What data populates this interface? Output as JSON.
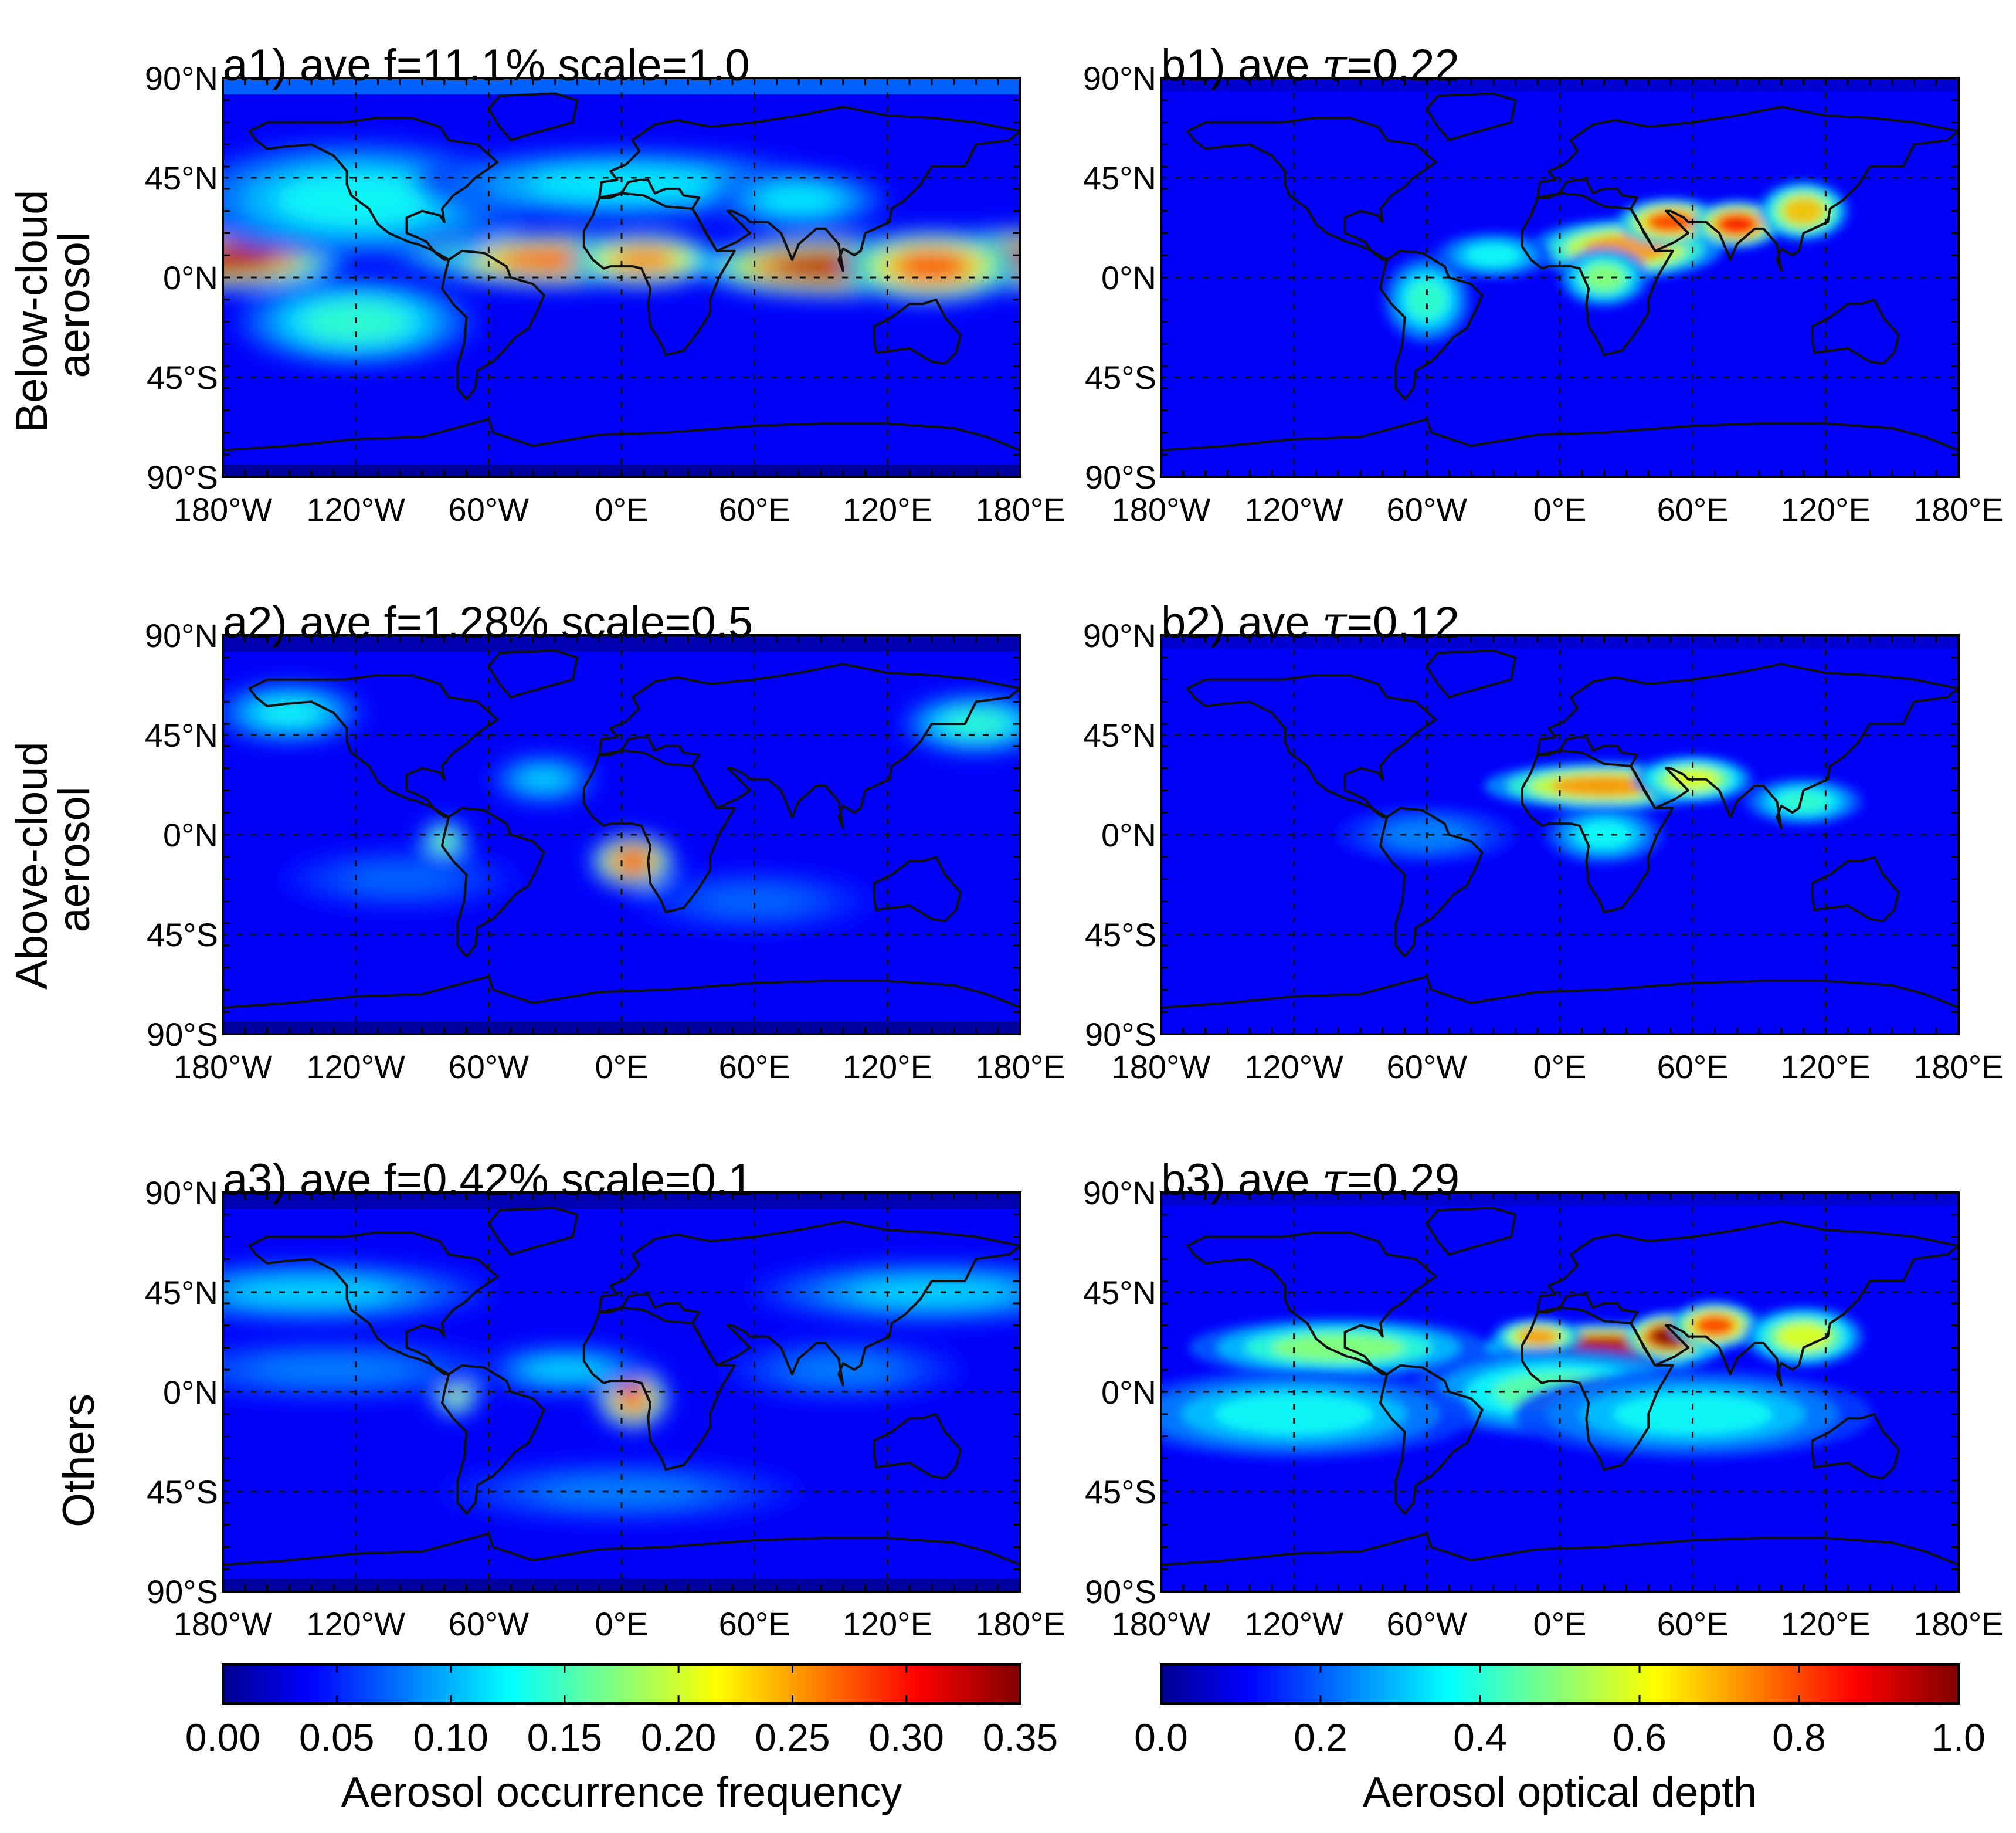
{
  "rows": [
    {
      "label_lines": [
        "Below-cloud",
        "aerosol"
      ]
    },
    {
      "label_lines": [
        "Above-cloud",
        "aerosol"
      ]
    },
    {
      "label_lines": [
        "Others"
      ]
    }
  ],
  "panels": [
    {
      "title_prefix": "a1) ave f=11.1%   scale=1.0",
      "title_symbol": "",
      "title_suffix": "",
      "field": "freq",
      "pattern": "below",
      "scale": 1.0,
      "avg": 0.111
    },
    {
      "title_prefix": "b1) ave ",
      "title_symbol": "τ",
      "title_suffix": "=0.22",
      "field": "aod",
      "pattern": "below",
      "avg": 0.22
    },
    {
      "title_prefix": "a2) ave f=1.28%   scale=0.5",
      "title_symbol": "",
      "title_suffix": "",
      "field": "freq",
      "pattern": "above",
      "scale": 0.5,
      "avg": 0.0128
    },
    {
      "title_prefix": "b2) ave ",
      "title_symbol": "τ",
      "title_suffix": "=0.12",
      "field": "aod",
      "pattern": "above",
      "avg": 0.12
    },
    {
      "title_prefix": "a3) ave f=0.42%   scale=0.1",
      "title_symbol": "",
      "title_suffix": "",
      "field": "freq",
      "pattern": "others",
      "scale": 0.1,
      "avg": 0.0042
    },
    {
      "title_prefix": "b3) ave ",
      "title_symbol": "τ",
      "title_suffix": "=0.29",
      "field": "aod",
      "pattern": "others",
      "avg": 0.29
    }
  ],
  "axes": {
    "lat_ticks": [
      "90°N",
      "45°N",
      "0°N",
      "45°S",
      "90°S"
    ],
    "lon_ticks": [
      "180°W",
      "120°W",
      "60°W",
      "0°E",
      "60°E",
      "120°E",
      "180°E"
    ]
  },
  "colorbars": [
    {
      "ticks": [
        "0.00",
        "0.05",
        "0.10",
        "0.15",
        "0.20",
        "0.25",
        "0.30",
        "0.35"
      ],
      "label": "Aerosol occurrence frequency",
      "range": [
        0,
        0.35
      ]
    },
    {
      "ticks": [
        "0.0",
        "0.2",
        "0.4",
        "0.6",
        "0.8",
        "1.0"
      ],
      "label": "Aerosol optical depth",
      "range": [
        0,
        1.0
      ]
    }
  ],
  "colormap": "jet"
}
